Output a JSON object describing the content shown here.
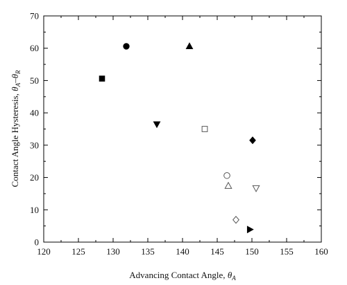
{
  "chart_data": {
    "type": "scatter",
    "title": "",
    "xlabel_main": "Advancing Contact Angle, ",
    "xlabel_symbol": "θ",
    "xlabel_sub": "A",
    "ylabel_main": "Contact Angle Hysteresis, ",
    "ylabel_symbol_1": "θ",
    "ylabel_sub_1": "A",
    "ylabel_dash": "–",
    "ylabel_symbol_2": "θ",
    "ylabel_sub_2": "R",
    "xlim": [
      120,
      160
    ],
    "ylim": [
      0,
      70
    ],
    "x_ticks": [
      "120",
      "125",
      "130",
      "135",
      "140",
      "145",
      "150",
      "155",
      "160"
    ],
    "y_ticks": [
      "0",
      "10",
      "20",
      "30",
      "40",
      "50",
      "60",
      "70"
    ],
    "grid": false,
    "legend": "none",
    "series": [
      {
        "marker": "square",
        "filled": true,
        "points": [
          [
            128.4,
            50.6
          ]
        ]
      },
      {
        "marker": "circle",
        "filled": true,
        "points": [
          [
            131.9,
            60.6
          ]
        ]
      },
      {
        "marker": "triangle-up",
        "filled": true,
        "points": [
          [
            141.0,
            60.6
          ]
        ]
      },
      {
        "marker": "triangle-down",
        "filled": true,
        "points": [
          [
            136.3,
            36.5
          ]
        ]
      },
      {
        "marker": "square",
        "filled": false,
        "points": [
          [
            143.2,
            35.0
          ]
        ]
      },
      {
        "marker": "diamond",
        "filled": true,
        "points": [
          [
            150.1,
            31.5
          ]
        ]
      },
      {
        "marker": "circle",
        "filled": false,
        "points": [
          [
            146.4,
            20.6
          ]
        ]
      },
      {
        "marker": "triangle-up",
        "filled": false,
        "points": [
          [
            146.6,
            17.4
          ]
        ]
      },
      {
        "marker": "triangle-down",
        "filled": false,
        "points": [
          [
            150.6,
            16.7
          ]
        ]
      },
      {
        "marker": "diamond",
        "filled": false,
        "points": [
          [
            147.7,
            6.9
          ]
        ]
      },
      {
        "marker": "triangle-right",
        "filled": true,
        "points": [
          [
            149.7,
            3.9
          ]
        ]
      }
    ]
  }
}
